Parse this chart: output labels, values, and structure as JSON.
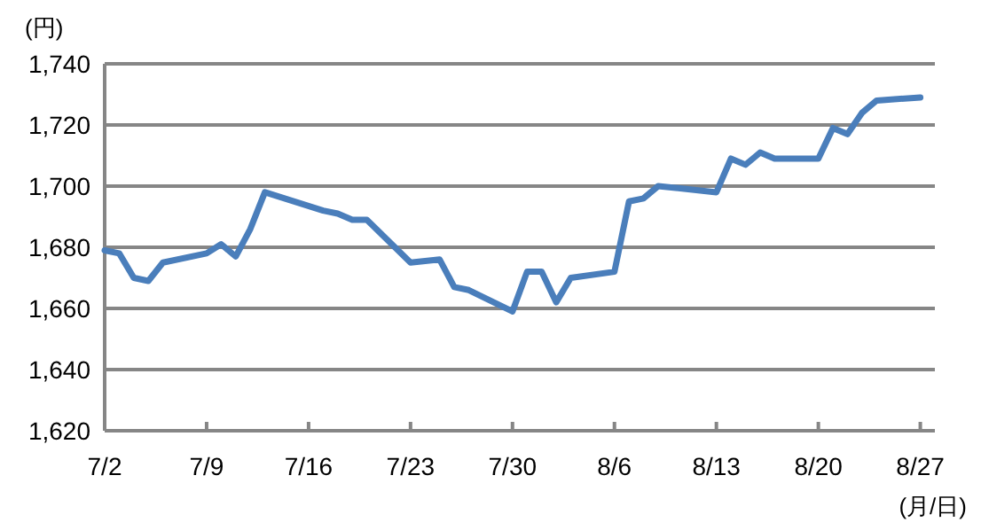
{
  "chart_data": {
    "type": "line",
    "ylabel": "(円)",
    "xlabel": "(月/日)",
    "x": [
      "--07-02",
      "--07-03",
      "--07-04",
      "--07-05",
      "--07-06",
      "--07-09",
      "--07-10",
      "--07-11",
      "--07-12",
      "--07-13",
      "--07-17",
      "--07-18",
      "--07-19",
      "--07-20",
      "--07-23",
      "--07-25",
      "--07-26",
      "--07-27",
      "--07-30",
      "--07-31",
      "--08-01",
      "--08-02",
      "--08-03",
      "--08-06",
      "--08-07",
      "--08-08",
      "--08-09",
      "--08-13",
      "--08-14",
      "--08-15",
      "--08-16",
      "--08-17",
      "--08-20",
      "--08-21",
      "--08-22",
      "--08-23",
      "--08-24",
      "--08-27"
    ],
    "series": [
      {
        "color": "#4a7ebb",
        "values": [
          1679,
          1678,
          1670,
          1669,
          1675,
          1678,
          1681,
          1677,
          1686,
          1698,
          1692,
          1691,
          1689,
          1689,
          1675,
          1676,
          1667,
          1666,
          1659,
          1672,
          1672,
          1662,
          1670,
          1672,
          1695,
          1696,
          1700,
          1698,
          1709,
          1707,
          1711,
          1709,
          1709,
          1719,
          1717,
          1724,
          1728,
          1729
        ]
      }
    ],
    "xlim": [
      "--07-02",
      "--08-28"
    ],
    "xticks": [
      {
        "value": "--07-02",
        "label": "7/2"
      },
      {
        "value": "--07-09",
        "label": "7/9"
      },
      {
        "value": "--07-16",
        "label": "7/16"
      },
      {
        "value": "--07-23",
        "label": "7/23"
      },
      {
        "value": "--07-30",
        "label": "7/30"
      },
      {
        "value": "--08-06",
        "label": "8/6"
      },
      {
        "value": "--08-13",
        "label": "8/13"
      },
      {
        "value": "--08-20",
        "label": "8/20"
      },
      {
        "value": "--08-27",
        "label": "8/27"
      }
    ],
    "ylim": [
      1620,
      1740
    ],
    "yticks": [
      {
        "value": 1620,
        "label": "1,620"
      },
      {
        "value": 1640,
        "label": "1,640"
      },
      {
        "value": 1660,
        "label": "1,660"
      },
      {
        "value": 1680,
        "label": "1,680"
      },
      {
        "value": 1700,
        "label": "1,700"
      },
      {
        "value": 1720,
        "label": "1,720"
      },
      {
        "value": 1740,
        "label": "1,740"
      }
    ],
    "grid": "y",
    "marker": "none",
    "line_style": "solid"
  }
}
